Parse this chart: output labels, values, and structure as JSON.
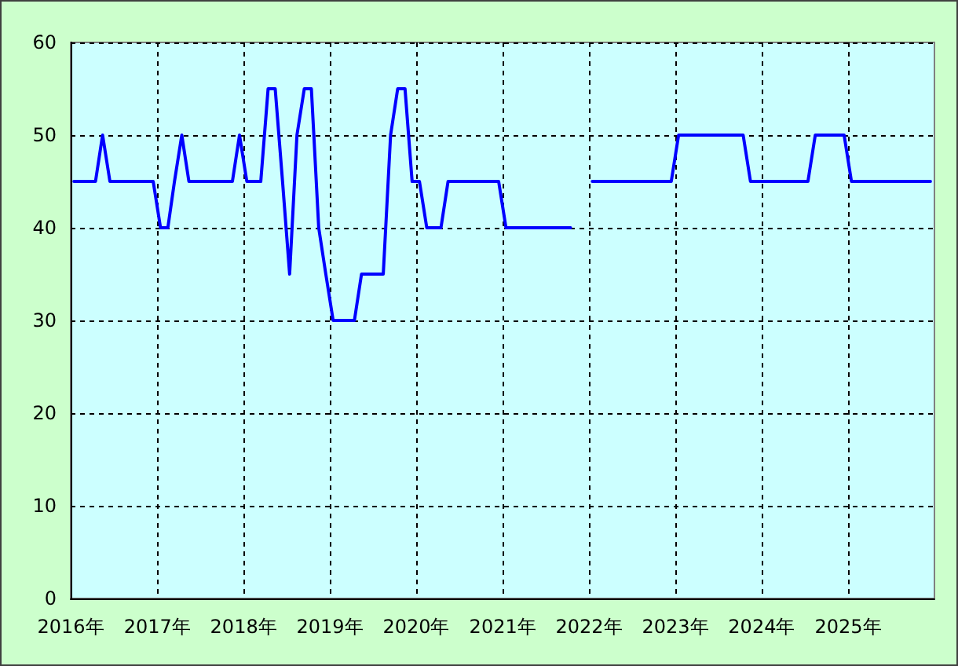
{
  "chart_data": {
    "type": "line",
    "x": [
      "2016-01-15",
      "2016-02-15",
      "2016-03-15",
      "2016-04-15",
      "2016-05-15",
      "2016-06-15",
      "2016-07-15",
      "2016-08-15",
      "2016-09-15",
      "2016-10-15",
      "2016-11-15",
      "2016-12-15",
      "2017-01-15",
      "2017-02-15",
      "2017-03-15",
      "2017-04-15",
      "2017-05-15",
      "2017-06-15",
      "2017-07-15",
      "2017-08-15",
      "2017-09-15",
      "2017-10-15",
      "2017-11-15",
      "2017-12-15",
      "2018-01-15",
      "2018-02-15",
      "2018-03-15",
      "2018-04-15",
      "2018-05-15",
      "2018-06-15",
      "2018-07-15",
      "2018-08-15",
      "2018-09-15",
      "2018-10-15",
      "2018-11-15",
      "2018-12-15",
      "2019-01-15",
      "2019-02-15",
      "2019-03-15",
      "2019-04-15",
      "2019-05-15",
      "2019-06-15",
      "2019-07-15",
      "2019-08-15",
      "2019-09-15",
      "2019-10-15",
      "2019-11-15",
      "2019-12-15",
      "2020-01-15",
      "2020-02-15",
      "2020-03-15",
      "2020-04-15",
      "2020-05-15",
      "2020-06-15",
      "2020-07-15",
      "2020-08-15",
      "2020-09-15",
      "2020-10-15",
      "2020-11-15",
      "2020-12-15",
      "2021-01-15",
      "2021-02-15",
      "2021-03-15",
      "2021-04-15",
      "2021-05-15",
      "2021-06-15",
      "2021-07-15",
      "2021-08-15",
      "2021-09-15",
      "2021-10-15",
      "2021-11-15",
      "2021-12-15",
      "2022-01-15",
      "2022-02-15",
      "2022-03-15",
      "2022-04-15",
      "2022-05-15",
      "2022-06-15",
      "2022-07-15",
      "2022-08-15",
      "2022-09-15",
      "2022-10-15",
      "2022-11-15",
      "2022-12-15",
      "2023-01-15",
      "2023-02-15",
      "2023-03-15",
      "2023-04-15",
      "2023-05-15",
      "2023-06-15",
      "2023-07-15",
      "2023-08-15",
      "2023-09-15",
      "2023-10-15",
      "2023-11-15",
      "2023-12-15",
      "2024-01-15",
      "2024-02-15",
      "2024-03-15",
      "2024-04-15",
      "2024-05-15",
      "2024-06-15",
      "2024-07-15",
      "2024-08-15",
      "2024-09-15",
      "2024-10-15",
      "2024-11-15",
      "2024-12-15",
      "2025-01-15",
      "2025-02-15",
      "2025-03-15",
      "2025-04-15",
      "2025-05-15",
      "2025-06-15",
      "2025-07-15",
      "2025-08-15",
      "2025-09-15",
      "2025-10-15",
      "2025-11-15",
      "2025-12-15"
    ],
    "series": [
      {
        "color": "#0000ff",
        "values": [
          45,
          45,
          45,
          45,
          50,
          45,
          45,
          45,
          45,
          45,
          45,
          45,
          40,
          40,
          45,
          50,
          45,
          45,
          45,
          45,
          45,
          45,
          45,
          50,
          45,
          45,
          45,
          55,
          55,
          45,
          35,
          50,
          55,
          55,
          40,
          35,
          30,
          30,
          30,
          30,
          35,
          35,
          35,
          35,
          50,
          55,
          55,
          45,
          45,
          40,
          40,
          40,
          45,
          45,
          45,
          45,
          45,
          45,
          45,
          45,
          40,
          40,
          40,
          40,
          40,
          40,
          40,
          40,
          40,
          40,
          null,
          null,
          45,
          45,
          45,
          45,
          45,
          45,
          45,
          45,
          45,
          45,
          45,
          45,
          50,
          50,
          50,
          50,
          50,
          50,
          50,
          50,
          50,
          50,
          45,
          45,
          45,
          45,
          45,
          45,
          45,
          45,
          45,
          50,
          50,
          50,
          50,
          50,
          45,
          45,
          45,
          45,
          45,
          45,
          45,
          45,
          45,
          45,
          45,
          45
        ]
      }
    ],
    "xlim": [
      "2016",
      "2026"
    ],
    "xticks": [
      {
        "value": "2016",
        "label": "2016年"
      },
      {
        "value": "2017",
        "label": "2017年"
      },
      {
        "value": "2018",
        "label": "2018年"
      },
      {
        "value": "2019",
        "label": "2019年"
      },
      {
        "value": "2020",
        "label": "2020年"
      },
      {
        "value": "2021",
        "label": "2021年"
      },
      {
        "value": "2022",
        "label": "2022年"
      },
      {
        "value": "2023",
        "label": "2023年"
      },
      {
        "value": "2024",
        "label": "2024年"
      },
      {
        "value": "2025",
        "label": "2025年"
      }
    ],
    "ylim": [
      0,
      60
    ],
    "yticks": [
      0,
      10,
      20,
      30,
      40,
      50,
      60
    ],
    "grid": true,
    "marker": "none",
    "line_style": "solid"
  }
}
